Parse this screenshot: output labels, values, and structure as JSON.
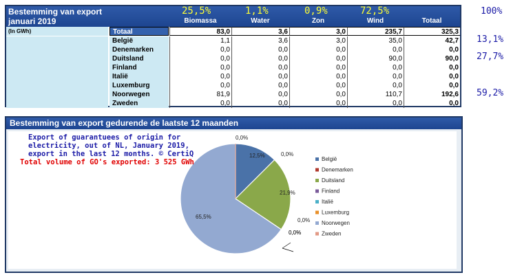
{
  "table": {
    "title_line1": "Bestemming van export",
    "title_line2": "januari 2019",
    "unit_label": "(In GWh)",
    "columns": [
      "Biomassa",
      "Water",
      "Zon",
      "Wind",
      "Totaal"
    ],
    "column_shares": [
      "25,5%",
      "1,1%",
      "0,9%",
      "72,5%"
    ],
    "total_share": "100%",
    "total_row": {
      "name": "Totaal",
      "values": [
        "83,0",
        "3,6",
        "3,0",
        "235,7",
        "325,3"
      ]
    },
    "rows": [
      {
        "name": "België",
        "values": [
          "1,1",
          "3,6",
          "3,0",
          "35,0",
          "42,7"
        ]
      },
      {
        "name": "Denemarken",
        "values": [
          "0,0",
          "0,0",
          "0,0",
          "0,0",
          "0,0"
        ]
      },
      {
        "name": "Duitsland",
        "values": [
          "0,0",
          "0,0",
          "0,0",
          "90,0",
          "90,0"
        ]
      },
      {
        "name": "Finland",
        "values": [
          "0,0",
          "0,0",
          "0,0",
          "0,0",
          "0,0"
        ]
      },
      {
        "name": "Italië",
        "values": [
          "0,0",
          "0,0",
          "0,0",
          "0,0",
          "0,0"
        ]
      },
      {
        "name": "Luxemburg",
        "values": [
          "0,0",
          "0,0",
          "0,0",
          "0,0",
          "0,0"
        ]
      },
      {
        "name": "Noorwegen",
        "values": [
          "81,9",
          "0,0",
          "0,0",
          "110,7",
          "192,6"
        ]
      },
      {
        "name": "Zweden",
        "values": [
          "0,0",
          "0,0",
          "0,0",
          "0,0",
          "0,0"
        ]
      }
    ],
    "row_shares": {
      "België": "13,1%",
      "Duitsland": "27,7%",
      "Noorwegen": "59,2%"
    }
  },
  "chart_panel": {
    "title": "Bestemming van export gedurende de laatste 12 maanden",
    "caption_lines": [
      "Export of guarantuees of origin for",
      "electricity, out of NL, January 2019,",
      "export in the last 12 months. © CertiQ"
    ],
    "total_line": "Total volume of GO's exported: 3 525 GWh",
    "caption_color": "#1a1aa6",
    "total_color": "#e00000"
  },
  "chart_data": {
    "type": "pie",
    "title": "Bestemming van export gedurende de laatste 12 maanden",
    "series": [
      {
        "name": "België",
        "value": 12.5,
        "label": "12,5%",
        "color": "#4a72a8"
      },
      {
        "name": "Denemarken",
        "value": 0.0,
        "label": "0,0%",
        "color": "#b03a2e"
      },
      {
        "name": "Duitsland",
        "value": 21.9,
        "label": "21,9%",
        "color": "#8aa84a"
      },
      {
        "name": "Finland",
        "value": 0.0,
        "label": "0,0%",
        "color": "#7a5a9a"
      },
      {
        "name": "Italië",
        "value": 0.0,
        "label": "0,0%",
        "color": "#4ab0c8"
      },
      {
        "name": "Luxemburg",
        "value": 0.0,
        "label": "0,0%",
        "color": "#e8902a"
      },
      {
        "name": "Noorwegen",
        "value": 65.5,
        "label": "65,5%",
        "color": "#93a9d1"
      },
      {
        "name": "Zweden",
        "value": 0.0,
        "label": "0,0%",
        "color": "#e29a86"
      }
    ],
    "legend_position": "right"
  }
}
